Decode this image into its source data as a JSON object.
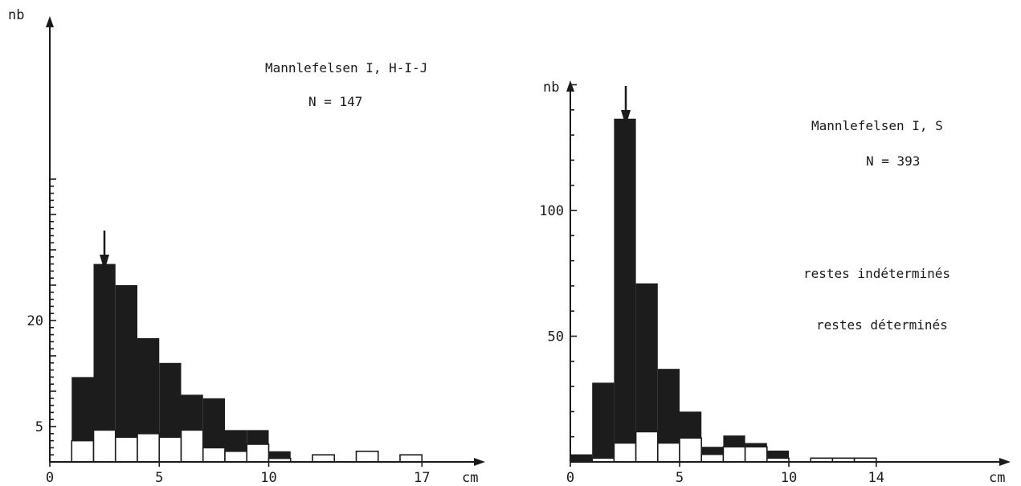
{
  "chart_data": [
    {
      "type": "bar",
      "stacked": true,
      "title": "Mannlefelsen I, H-I-J",
      "subtitle": "N = 147",
      "xlabel": "cm",
      "ylabel": "nb",
      "xlim": [
        0,
        19
      ],
      "ylim": [
        0,
        40
      ],
      "xticks": [
        0,
        5,
        10,
        17
      ],
      "yticks": [
        5,
        20
      ],
      "yticks_unlabeled": [
        10,
        15,
        25
      ],
      "arrow_at_x": 2.5,
      "bin_edges": [
        1,
        2,
        3,
        4,
        5,
        6,
        7,
        8,
        9,
        10,
        11,
        12,
        13,
        14,
        15,
        16,
        17
      ],
      "series": [
        {
          "name": "",
          "color": "#ffffff",
          "values": [
            3,
            4.5,
            3.5,
            4,
            3.5,
            4.5,
            2,
            1.5,
            2.5,
            0.5,
            0,
            1,
            0,
            1.5,
            0,
            1
          ]
        },
        {
          "name": "",
          "color": "#1c1c1c",
          "values": [
            9,
            23.5,
            21.5,
            13.5,
            10.5,
            5,
            7,
            3,
            2,
            1,
            0,
            0,
            0,
            0,
            0,
            0
          ]
        }
      ]
    },
    {
      "type": "bar",
      "stacked": true,
      "title": "Mannlefelsen I, S",
      "subtitle": "N = 393",
      "xlabel": "cm",
      "ylabel": "nb",
      "xlim": [
        0,
        20
      ],
      "ylim": [
        0,
        150
      ],
      "xticks": [
        0,
        5,
        10,
        14
      ],
      "yticks": [
        50,
        100
      ],
      "arrow_at_x": 2.5,
      "bin_edges": [
        0,
        1,
        2,
        3,
        4,
        5,
        6,
        7,
        8,
        9,
        10,
        11,
        12,
        13,
        14
      ],
      "series": [
        {
          "name": "",
          "color": "#ffffff",
          "values": [
            0,
            1.5,
            7.5,
            12,
            7.5,
            9.5,
            3,
            6,
            6,
            1.5,
            0,
            1.5,
            1.5,
            1.5
          ]
        },
        {
          "name": "",
          "color": "#1c1c1c",
          "values": [
            3,
            30,
            129,
            59,
            29.5,
            10.5,
            3,
            4.5,
            1.5,
            3,
            0,
            0,
            0,
            0
          ]
        }
      ],
      "legend_text": [
        "restes indéterminés",
        "restes déterminés"
      ],
      "legend_placement": "right"
    }
  ]
}
